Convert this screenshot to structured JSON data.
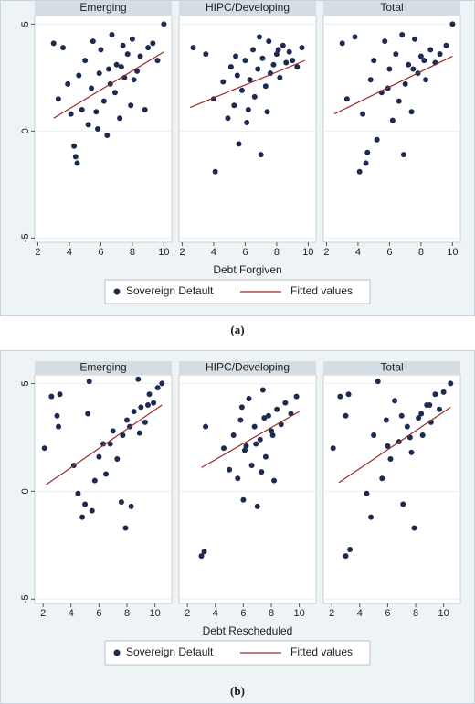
{
  "captions": [
    "(a)",
    "(b)"
  ],
  "chart_data": [
    {
      "type": "scatter",
      "title": "Emerging",
      "x": [
        3.0,
        3.3,
        3.6,
        3.9,
        4.1,
        4.3,
        4.5,
        4.6,
        4.8,
        5.0,
        5.2,
        5.4,
        5.5,
        5.7,
        5.9,
        6.0,
        6.2,
        6.4,
        6.5,
        6.7,
        6.9,
        7.0,
        7.2,
        7.4,
        7.5,
        7.7,
        7.9,
        8.0,
        8.3,
        8.5,
        8.8,
        9.0,
        9.3,
        9.6,
        10.0,
        4.4,
        5.8,
        6.6,
        7.3,
        8.1
      ],
      "y": [
        4.1,
        1.5,
        3.9,
        2.2,
        0.8,
        -0.7,
        -1.5,
        2.6,
        1.0,
        3.3,
        0.3,
        2.0,
        4.2,
        0.9,
        2.7,
        3.8,
        1.4,
        -0.2,
        2.9,
        4.5,
        1.8,
        3.1,
        0.6,
        4.0,
        2.5,
        3.6,
        1.2,
        4.3,
        2.8,
        3.5,
        1.0,
        3.9,
        4.1,
        3.3,
        5.0,
        -1.2,
        0.1,
        2.2,
        3.0,
        2.4
      ],
      "color": "#1c2b4f",
      "fit": {
        "x": [
          3.0,
          10.0
        ],
        "y": [
          0.6,
          3.7
        ],
        "color": "#9b2a2a"
      },
      "xlim": [
        1.8,
        10.5
      ],
      "ylim": [
        -5.2,
        5.4
      ],
      "xticks": [
        2,
        4,
        6,
        8,
        10
      ],
      "yticks": [
        -5,
        0,
        5
      ]
    },
    {
      "type": "scatter",
      "title": "HIPC/Developing",
      "x": [
        2.7,
        3.5,
        4.0,
        4.1,
        4.6,
        4.9,
        5.1,
        5.3,
        5.5,
        5.6,
        5.8,
        6.0,
        6.1,
        6.3,
        6.5,
        6.6,
        6.8,
        7.0,
        7.1,
        7.3,
        7.5,
        7.6,
        7.8,
        8.0,
        8.2,
        8.4,
        8.6,
        8.8,
        9.0,
        9.3,
        9.6,
        5.4,
        6.2,
        6.9,
        7.4,
        8.1
      ],
      "y": [
        3.9,
        3.6,
        1.5,
        -1.9,
        2.3,
        0.6,
        3.0,
        1.2,
        2.6,
        -0.6,
        1.9,
        3.3,
        0.4,
        2.4,
        3.8,
        1.6,
        2.9,
        -1.1,
        3.4,
        2.1,
        4.2,
        2.7,
        3.1,
        3.6,
        2.5,
        4.0,
        3.2,
        3.7,
        3.3,
        3.0,
        3.9,
        3.5,
        1.0,
        4.4,
        0.9,
        3.8
      ],
      "color": "#1c2b4f",
      "fit": {
        "x": [
          2.5,
          9.8
        ],
        "y": [
          1.1,
          3.3
        ],
        "color": "#9b2a2a"
      },
      "xlim": [
        1.8,
        10.5
      ],
      "ylim": [
        -5.2,
        5.4
      ],
      "xticks": [
        2,
        4,
        6,
        8,
        10
      ],
      "yticks": [
        -5,
        0,
        5
      ],
      "x_label": "Debt Forgiven",
      "legend": [
        "Sovereign Default",
        "Fitted values"
      ]
    },
    {
      "type": "scatter",
      "title": "Total",
      "x": [
        3.0,
        3.3,
        3.8,
        4.1,
        4.3,
        4.5,
        4.8,
        5.0,
        5.2,
        5.5,
        5.7,
        6.0,
        6.2,
        6.4,
        6.6,
        6.8,
        7.0,
        7.2,
        7.4,
        7.6,
        7.8,
        8.0,
        8.3,
        8.6,
        8.9,
        9.2,
        9.6,
        10.0,
        4.6,
        5.9,
        6.9,
        7.5,
        8.2
      ],
      "y": [
        4.1,
        1.5,
        4.4,
        -1.9,
        0.8,
        -1.5,
        2.4,
        3.3,
        -0.4,
        1.8,
        4.2,
        2.9,
        0.5,
        3.6,
        1.4,
        4.5,
        2.2,
        3.1,
        0.9,
        4.3,
        2.7,
        3.5,
        2.4,
        3.8,
        3.2,
        3.6,
        4.0,
        5.0,
        -1.0,
        2.0,
        -1.1,
        2.9,
        3.3
      ],
      "color": "#1c2b4f",
      "fit": {
        "x": [
          2.5,
          10.0
        ],
        "y": [
          0.8,
          3.5
        ],
        "color": "#9b2a2a"
      },
      "xlim": [
        1.8,
        10.5
      ],
      "ylim": [
        -5.2,
        5.4
      ],
      "xticks": [
        2,
        4,
        6,
        8,
        10
      ],
      "yticks": [
        -5,
        0,
        5
      ]
    },
    {
      "type": "scatter",
      "title": "Emerging",
      "x": [
        2.1,
        2.6,
        3.0,
        3.2,
        3.1,
        4.5,
        4.8,
        5.0,
        5.3,
        5.5,
        5.7,
        6.0,
        6.3,
        6.5,
        7.0,
        7.3,
        7.6,
        7.9,
        8.0,
        8.3,
        8.5,
        8.8,
        9.0,
        9.3,
        9.6,
        9.9,
        10.2,
        10.5,
        6.8,
        7.7,
        8.2,
        8.9,
        9.5,
        4.2,
        5.2
      ],
      "y": [
        2.0,
        4.4,
        3.5,
        4.5,
        3.0,
        -0.1,
        -1.2,
        -0.6,
        5.1,
        -0.9,
        0.5,
        1.6,
        2.2,
        0.8,
        2.8,
        1.5,
        -0.5,
        -1.7,
        3.3,
        -0.7,
        3.7,
        5.2,
        3.9,
        3.2,
        4.5,
        4.1,
        4.8,
        5.0,
        2.2,
        2.6,
        3.0,
        2.7,
        4.0,
        1.2,
        3.6
      ],
      "color": "#1c2b4f",
      "fit": {
        "x": [
          2.2,
          10.5
        ],
        "y": [
          0.3,
          4.0
        ],
        "color": "#9b2a2a"
      },
      "xlim": [
        1.4,
        11.2
      ],
      "ylim": [
        -5.2,
        5.4
      ],
      "xticks": [
        2,
        4,
        6,
        8,
        10
      ],
      "yticks": [
        -5,
        0,
        5
      ]
    },
    {
      "type": "scatter",
      "title": "HIPC/Developing",
      "x": [
        3.0,
        3.2,
        3.3,
        4.6,
        5.0,
        5.3,
        5.6,
        5.8,
        6.0,
        6.2,
        6.4,
        6.6,
        6.8,
        7.0,
        7.2,
        7.4,
        7.6,
        7.8,
        8.0,
        8.2,
        8.4,
        8.7,
        9.0,
        9.4,
        9.8,
        6.1,
        6.9,
        7.5,
        8.1,
        7.3,
        5.9
      ],
      "y": [
        -3.0,
        -2.8,
        3.0,
        2.0,
        1.0,
        2.6,
        0.6,
        3.3,
        -0.4,
        2.1,
        4.3,
        1.2,
        3.0,
        -0.7,
        2.4,
        4.7,
        1.6,
        3.5,
        2.8,
        0.5,
        3.8,
        3.1,
        4.1,
        3.6,
        4.4,
        1.9,
        2.2,
        3.4,
        2.6,
        0.9,
        3.9
      ],
      "color": "#1c2b4f",
      "fit": {
        "x": [
          3.0,
          10.0
        ],
        "y": [
          1.1,
          3.7
        ],
        "color": "#9b2a2a"
      },
      "xlim": [
        1.4,
        11.2
      ],
      "ylim": [
        -5.2,
        5.4
      ],
      "xticks": [
        2,
        4,
        6,
        8,
        10
      ],
      "yticks": [
        -5,
        0,
        5
      ],
      "x_label": "Debt Rescheduled",
      "legend": [
        "Sovereign Default",
        "Fitted values"
      ]
    },
    {
      "type": "scatter",
      "title": "Total",
      "x": [
        2.1,
        2.6,
        3.0,
        3.2,
        3.3,
        4.5,
        4.8,
        5.0,
        5.3,
        5.6,
        5.9,
        6.2,
        6.5,
        6.8,
        7.1,
        7.4,
        7.7,
        7.9,
        8.2,
        8.5,
        8.8,
        9.1,
        9.4,
        9.7,
        10.0,
        10.5,
        6.0,
        7.0,
        7.6,
        8.4,
        9.0,
        3.0
      ],
      "y": [
        2.0,
        4.4,
        3.5,
        4.5,
        -2.7,
        -0.1,
        -1.2,
        2.6,
        5.1,
        0.6,
        3.3,
        1.5,
        4.2,
        2.3,
        -0.6,
        3.0,
        1.8,
        -1.7,
        3.4,
        2.6,
        4.0,
        3.2,
        4.5,
        3.8,
        4.6,
        5.0,
        2.1,
        3.5,
        2.5,
        3.6,
        4.0,
        -3.0
      ],
      "color": "#1c2b4f",
      "fit": {
        "x": [
          2.5,
          10.5
        ],
        "y": [
          0.4,
          3.9
        ],
        "color": "#9b2a2a"
      },
      "xlim": [
        1.4,
        11.2
      ],
      "ylim": [
        -5.2,
        5.4
      ],
      "xticks": [
        2,
        4,
        6,
        8,
        10
      ],
      "yticks": [
        -5,
        0,
        5
      ]
    }
  ]
}
